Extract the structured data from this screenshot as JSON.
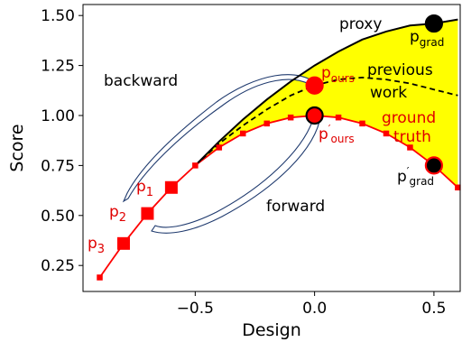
{
  "chart_data": {
    "type": "line",
    "xlabel": "Design",
    "ylabel": "Score",
    "xlim": [
      -0.97,
      0.61
    ],
    "ylim": [
      0.12,
      1.555
    ],
    "x_ticks": [
      -0.5,
      0.0,
      0.5
    ],
    "x_tick_labels": [
      "−0.5",
      "0.0",
      "0.5"
    ],
    "y_ticks": [
      0.25,
      0.5,
      0.75,
      1.0,
      1.25,
      1.5
    ],
    "y_tick_labels": [
      "0.25",
      "0.50",
      "0.75",
      "1.00",
      "1.25",
      "1.50"
    ],
    "grid": false,
    "colors": {
      "ground_truth": "#ff0000",
      "proxy": "#000000",
      "previous_work": "#000000",
      "fill": "#ffff00",
      "arrow": "#1f3a6e"
    },
    "series": [
      {
        "name": "ground truth",
        "style": "red line, square markers",
        "x": [
          -0.9,
          -0.8,
          -0.7,
          -0.6,
          -0.5,
          -0.4,
          -0.3,
          -0.2,
          -0.1,
          0.0,
          0.1,
          0.2,
          0.3,
          0.4,
          0.5,
          0.6
        ],
        "y": [
          0.19,
          0.36,
          0.51,
          0.64,
          0.75,
          0.84,
          0.91,
          0.96,
          0.99,
          1.0,
          0.99,
          0.96,
          0.91,
          0.84,
          0.75,
          0.64
        ]
      },
      {
        "name": "proxy",
        "style": "solid black line",
        "x": [
          -0.5,
          -0.4,
          -0.3,
          -0.2,
          -0.1,
          0.0,
          0.1,
          0.2,
          0.3,
          0.4,
          0.5,
          0.6
        ],
        "y": [
          0.75,
          0.87,
          0.98,
          1.08,
          1.17,
          1.25,
          1.32,
          1.38,
          1.42,
          1.45,
          1.46,
          1.48
        ]
      },
      {
        "name": "previous work",
        "style": "dashed black line",
        "x": [
          -0.5,
          -0.4,
          -0.3,
          -0.2,
          -0.1,
          0.0,
          0.1,
          0.2,
          0.3,
          0.4,
          0.5,
          0.6
        ],
        "y": [
          0.75,
          0.86,
          0.95,
          1.03,
          1.1,
          1.15,
          1.18,
          1.19,
          1.18,
          1.16,
          1.13,
          1.1
        ]
      }
    ],
    "highlight_points": [
      {
        "label": "p_ours",
        "x": 0.0,
        "y": 1.15,
        "color": "#ff0000",
        "edge": "#ff0000"
      },
      {
        "label": "p'_ours",
        "x": 0.0,
        "y": 1.0,
        "color": "#ff0000",
        "edge": "#000000"
      },
      {
        "label": "p_grad",
        "x": 0.5,
        "y": 1.46,
        "color": "#000000",
        "edge": "#000000"
      },
      {
        "label": "p'_grad",
        "x": 0.5,
        "y": 0.75,
        "color": "#000000",
        "edge": "#ff0000"
      }
    ],
    "backward_points": [
      {
        "label": "p1",
        "x": -0.6,
        "y": 0.64
      },
      {
        "label": "p2",
        "x": -0.7,
        "y": 0.51
      },
      {
        "label": "p3",
        "x": -0.8,
        "y": 0.36
      }
    ],
    "annotations": {
      "proxy": "proxy",
      "previous": "previous",
      "work": "work",
      "ground": "ground",
      "truth": "truth",
      "backward": "backward",
      "forward": "forward",
      "p": "p",
      "sub_ours": "ours",
      "sub_grad": "grad",
      "prime": "′",
      "sub_1": "1",
      "sub_2": "2",
      "sub_3": "3"
    }
  }
}
